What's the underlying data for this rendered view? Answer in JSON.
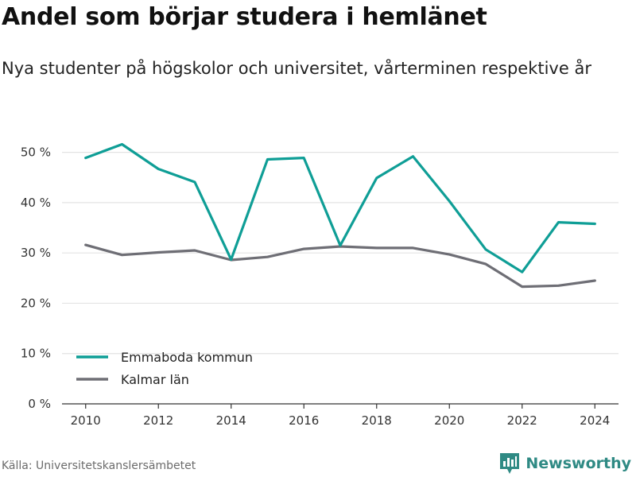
{
  "header": {
    "title": "Andel som börjar studera i hemlänet",
    "subtitle": "Nya studenter på högskolor och universitet, vårterminen respektive år"
  },
  "footer": {
    "source": "Källa: Universitetskanslersämbetet",
    "brand": "Newsworthy",
    "brand_icon": "newsworthy-logo-icon"
  },
  "colors": {
    "series_1": "#0f9e96",
    "series_2": "#6e6e75",
    "grid": "#e3e3e3",
    "axis": "#333333",
    "brand": "#2f8a84"
  },
  "chart_data": {
    "type": "line",
    "x": [
      2010,
      2011,
      2012,
      2013,
      2014,
      2015,
      2016,
      2017,
      2018,
      2019,
      2020,
      2021,
      2022,
      2023,
      2024
    ],
    "series": [
      {
        "name": "Emmaboda kommun",
        "values": [
          48.9,
          51.6,
          46.7,
          44.1,
          28.7,
          48.6,
          48.9,
          31.5,
          44.9,
          49.2,
          40.3,
          30.7,
          26.2,
          36.1,
          35.8
        ]
      },
      {
        "name": "Kalmar län",
        "values": [
          31.6,
          29.6,
          30.1,
          30.5,
          28.6,
          29.2,
          30.8,
          31.3,
          31.0,
          31.0,
          29.7,
          27.8,
          23.3,
          23.5,
          24.5
        ]
      }
    ],
    "xticks": [
      2010,
      2012,
      2014,
      2016,
      2018,
      2020,
      2022,
      2024
    ],
    "yticks": [
      0,
      10,
      20,
      30,
      40,
      50
    ],
    "ytick_labels": [
      "0 %",
      "10 %",
      "20 %",
      "30 %",
      "40 %",
      "50 %"
    ],
    "ylim": [
      0,
      55
    ],
    "xlim": [
      2009.35,
      2024.65
    ],
    "grid": "horizontal",
    "legend": "bottom-left"
  }
}
